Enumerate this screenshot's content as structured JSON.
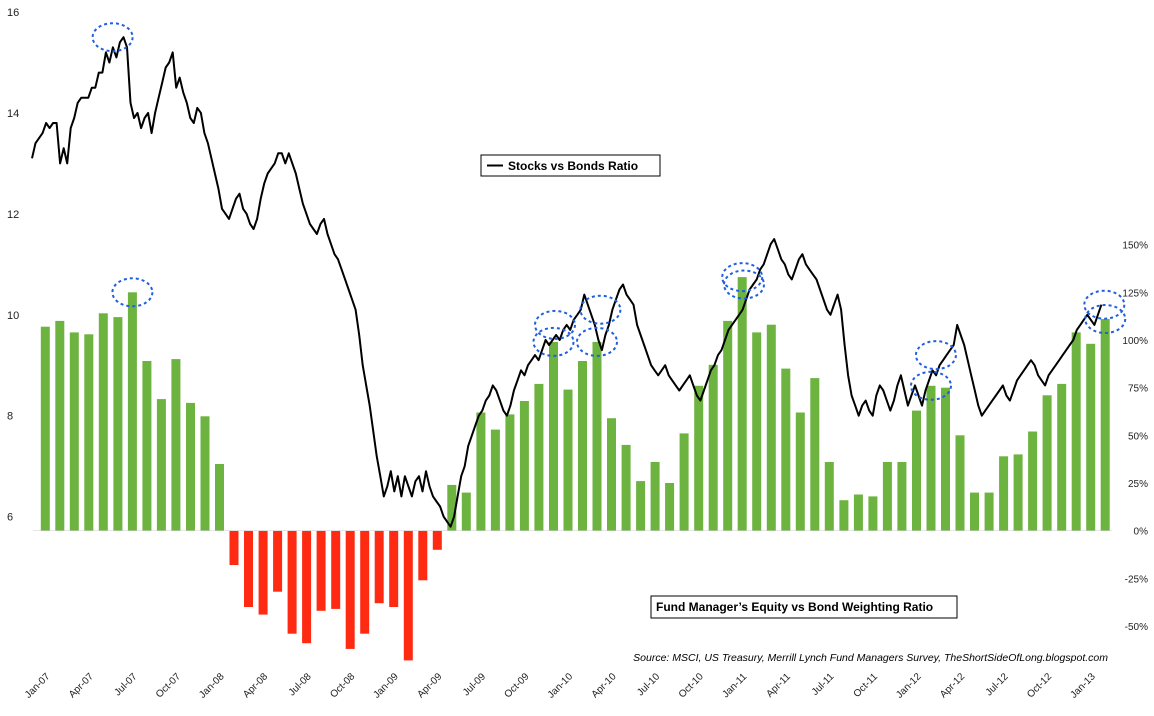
{
  "chart_data": {
    "type": "line+bar",
    "line_series": {
      "name": "Stocks vs Bonds Ratio",
      "color": "#000000",
      "y_axis": "left",
      "ylim": [
        3,
        16
      ],
      "yticks": [
        6,
        8,
        10,
        12,
        14,
        16
      ],
      "values": [
        13.1,
        13.4,
        13.5,
        13.6,
        13.8,
        13.7,
        13.8,
        13.8,
        13.0,
        13.3,
        13.0,
        13.7,
        13.9,
        14.2,
        14.3,
        14.3,
        14.3,
        14.5,
        14.5,
        14.8,
        14.8,
        15.2,
        15.0,
        15.3,
        15.1,
        15.4,
        15.5,
        15.3,
        14.2,
        13.9,
        14.0,
        13.7,
        13.9,
        14.0,
        13.6,
        14.0,
        14.3,
        14.6,
        14.9,
        15.0,
        15.2,
        14.5,
        14.7,
        14.4,
        14.2,
        13.9,
        13.8,
        14.1,
        14.0,
        13.6,
        13.4,
        13.1,
        12.8,
        12.5,
        12.1,
        12.0,
        11.9,
        12.1,
        12.3,
        12.4,
        12.1,
        12.0,
        11.8,
        11.7,
        11.9,
        12.3,
        12.6,
        12.8,
        12.9,
        13.0,
        13.2,
        13.2,
        13.0,
        13.2,
        13.0,
        12.8,
        12.5,
        12.2,
        12.0,
        11.8,
        11.7,
        11.6,
        11.8,
        11.9,
        11.6,
        11.4,
        11.2,
        11.1,
        10.9,
        10.7,
        10.5,
        10.3,
        10.1,
        9.6,
        9.0,
        8.6,
        8.2,
        7.7,
        7.2,
        6.8,
        6.4,
        6.6,
        6.9,
        6.5,
        6.8,
        6.4,
        6.8,
        6.6,
        6.4,
        6.7,
        6.8,
        6.5,
        6.9,
        6.6,
        6.4,
        6.3,
        6.2,
        6.0,
        5.9,
        5.8,
        6.0,
        6.4,
        6.8,
        7.0,
        7.4,
        7.6,
        7.8,
        8.0,
        8.1,
        8.3,
        8.4,
        8.6,
        8.5,
        8.3,
        8.1,
        8.0,
        8.2,
        8.5,
        8.7,
        8.9,
        8.8,
        9.0,
        9.1,
        9.2,
        9.1,
        9.3,
        9.5,
        9.4,
        9.5,
        9.6,
        9.5,
        9.7,
        9.8,
        9.7,
        9.9,
        10.0,
        10.1,
        10.4,
        10.2,
        10.0,
        9.8,
        9.5,
        9.3,
        9.6,
        9.8,
        10.1,
        10.3,
        10.5,
        10.6,
        10.4,
        10.3,
        10.2,
        9.8,
        9.6,
        9.4,
        9.2,
        9.0,
        8.9,
        8.8,
        8.9,
        9.0,
        8.8,
        8.7,
        8.6,
        8.5,
        8.6,
        8.7,
        8.8,
        8.6,
        8.4,
        8.3,
        8.5,
        8.7,
        8.9,
        9.0,
        9.2,
        9.3,
        9.5,
        9.7,
        9.8,
        9.9,
        10.0,
        10.1,
        10.3,
        10.5,
        10.6,
        10.7,
        10.9,
        11.0,
        11.2,
        11.4,
        11.5,
        11.3,
        11.1,
        11.0,
        10.8,
        10.7,
        10.9,
        11.1,
        11.2,
        11.0,
        10.9,
        10.8,
        10.7,
        10.5,
        10.3,
        10.1,
        10.0,
        10.2,
        10.4,
        10.1,
        9.4,
        8.8,
        8.4,
        8.2,
        8.0,
        8.2,
        8.3,
        8.1,
        8.0,
        8.4,
        8.6,
        8.5,
        8.3,
        8.1,
        8.3,
        8.6,
        8.8,
        8.5,
        8.2,
        8.4,
        8.6,
        8.4,
        8.2,
        8.5,
        8.7,
        8.9,
        8.8,
        9.0,
        9.1,
        9.2,
        9.3,
        9.4,
        9.8,
        9.6,
        9.4,
        9.1,
        8.8,
        8.5,
        8.2,
        8.0,
        8.1,
        8.2,
        8.3,
        8.4,
        8.5,
        8.6,
        8.4,
        8.3,
        8.5,
        8.7,
        8.8,
        8.9,
        9.0,
        9.1,
        9.0,
        8.8,
        8.7,
        8.6,
        8.8,
        8.9,
        9.0,
        9.1,
        9.2,
        9.3,
        9.4,
        9.5,
        9.7,
        9.8,
        9.9,
        10.0,
        9.9,
        9.8,
        10.0,
        10.2
      ],
      "start_label": "Jan-07",
      "end_label": "Feb-13"
    },
    "bar_series": {
      "name": "Fund Manager’s Equity vs Bond Weighting Ratio",
      "y_axis": "right",
      "ylim": [
        -0.72,
        2.72
      ],
      "yticks": [
        -0.5,
        -0.25,
        0,
        0.25,
        0.5,
        0.75,
        1.0,
        1.25,
        1.5
      ],
      "ytick_labels": [
        "-50%",
        "-25%",
        "0%",
        "25%",
        "50%",
        "75%",
        "100%",
        "125%",
        "150%"
      ],
      "positive_color": "#6db33f",
      "negative_color": "#ff2a12",
      "values": [
        1.07,
        1.1,
        1.04,
        1.03,
        1.14,
        1.12,
        1.25,
        0.89,
        0.69,
        0.9,
        0.67,
        0.6,
        0.35,
        -0.18,
        -0.4,
        -0.44,
        -0.32,
        -0.54,
        -0.59,
        -0.42,
        -0.41,
        -0.62,
        -0.54,
        -0.38,
        -0.4,
        -0.68,
        -0.26,
        -0.1,
        0.24,
        0.2,
        0.62,
        0.53,
        0.61,
        0.68,
        0.77,
        0.99,
        0.74,
        0.89,
        0.99,
        0.59,
        0.45,
        0.26,
        0.36,
        0.25,
        0.51,
        0.76,
        0.87,
        1.1,
        1.33,
        1.04,
        1.08,
        0.85,
        0.62,
        0.8,
        0.36,
        0.16,
        0.19,
        0.18,
        0.36,
        0.36,
        0.63,
        0.76,
        0.75,
        0.5,
        0.2,
        0.2,
        0.39,
        0.4,
        0.52,
        0.71,
        0.77,
        1.04,
        0.98,
        1.11
      ]
    },
    "x_tick_labels": [
      "Jan-07",
      "Apr-07",
      "Jul-07",
      "Oct-07",
      "Jan-08",
      "Apr-08",
      "Jul-08",
      "Oct-08",
      "Jan-09",
      "Apr-09",
      "Jul-09",
      "Oct-09",
      "Jan-10",
      "Apr-10",
      "Jul-10",
      "Oct-10",
      "Jan-11",
      "Apr-11",
      "Jul-11",
      "Oct-11",
      "Jan-12",
      "Apr-12",
      "Jul-12",
      "Oct-12",
      "Jan-13"
    ],
    "highlight_circles": [
      {
        "series": "line",
        "month_index": 5.5
      },
      {
        "series": "bar",
        "month_index": 6
      },
      {
        "series": "line",
        "month_index": 35.7
      },
      {
        "series": "bar",
        "month_index": 35
      },
      {
        "series": "line",
        "month_index": 38.8
      },
      {
        "series": "bar",
        "month_index": 38
      },
      {
        "series": "line",
        "month_index": 48.6
      },
      {
        "series": "bar",
        "month_index": 48
      },
      {
        "series": "line",
        "month_index": 61.7
      },
      {
        "series": "bar",
        "month_index": 61
      },
      {
        "series": "line",
        "month_index": 73.2
      },
      {
        "series": "bar",
        "month_index": 73
      }
    ],
    "highlight_color": "#1f5fe0",
    "legend_line": "Stocks vs Bonds Ratio",
    "legend_bar": "Fund Manager’s Equity vs Bond Weighting Ratio",
    "source": "Source: MSCI, US Treasury, Merrill Lynch Fund Managers Survey, TheShortSideOfLong.blogspot.com"
  }
}
